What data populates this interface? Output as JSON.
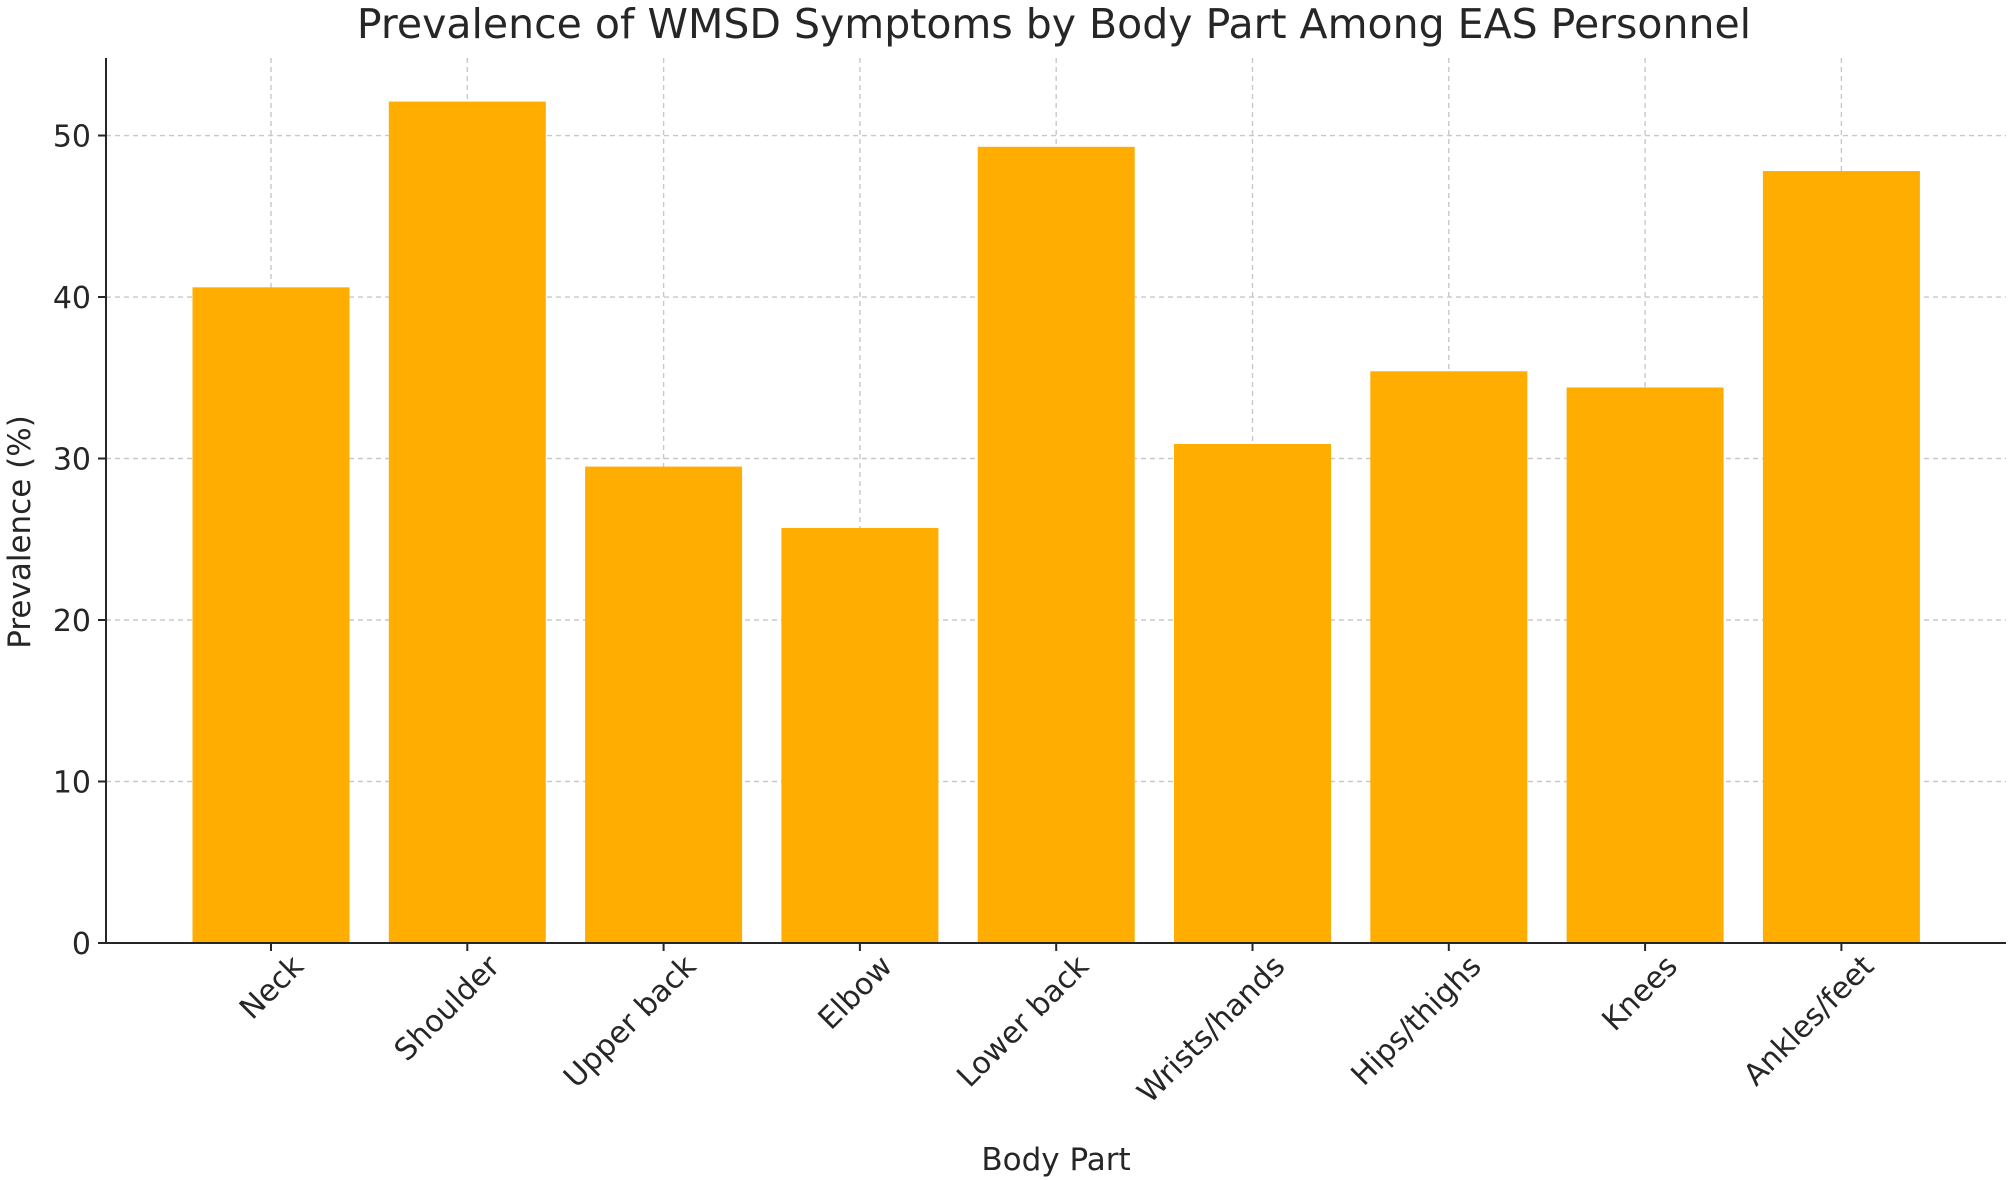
{
  "chart_data": {
    "type": "bar",
    "title": "Prevalence of WMSD Symptoms by Body Part Among EAS Personnel",
    "xlabel": "Body Part",
    "ylabel": "Prevalence (%)",
    "categories": [
      "Neck",
      "Shoulder",
      "Upper back",
      "Elbow",
      "Lower back",
      "Wrists/hands",
      "Hips/thighs",
      "Knees",
      "Ankles/feet"
    ],
    "values": [
      40.6,
      52.1,
      29.5,
      25.7,
      49.3,
      30.9,
      35.4,
      34.4,
      47.8
    ],
    "ylim": [
      0,
      54.8
    ],
    "yticks": [
      0,
      10,
      20,
      30,
      40,
      50
    ],
    "bar_color": "#ffad00",
    "grid": true,
    "legend": "none"
  }
}
